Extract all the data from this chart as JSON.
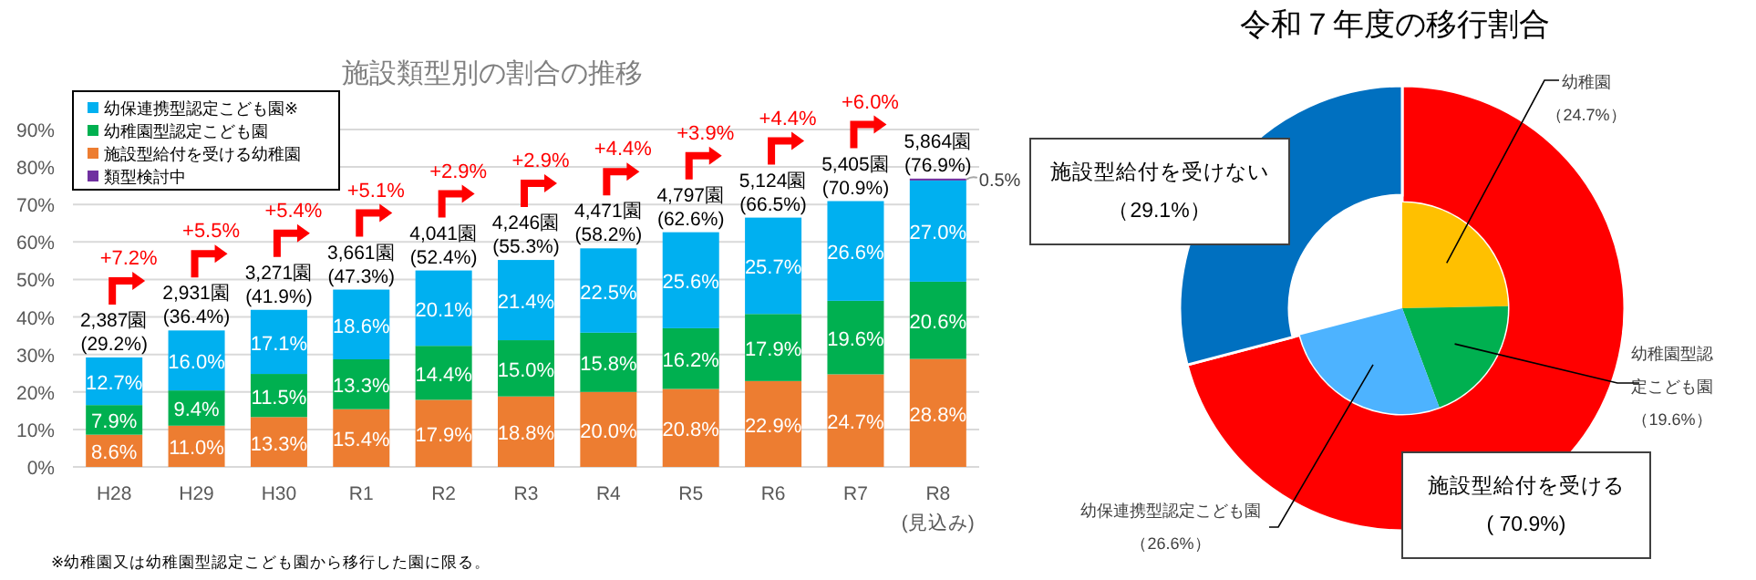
{
  "chart_data": [
    {
      "type": "bar",
      "title": "施設類型別の割合の推移",
      "stacked": true,
      "categories": [
        "H28",
        "H29",
        "H30",
        "R1",
        "R2",
        "R3",
        "R4",
        "R5",
        "R6",
        "R7",
        "R8\n(見込み)"
      ],
      "series": [
        {
          "name": "施設型給付を受ける幼稚園",
          "color": "#ed7d31",
          "values": [
            8.6,
            11.0,
            13.3,
            15.4,
            17.9,
            18.8,
            20.0,
            20.8,
            22.9,
            24.7,
            28.8
          ],
          "value_labels": [
            "8.6%",
            "11.0%",
            "13.3%",
            "15.4%",
            "17.9%",
            "18.8%",
            "20.0%",
            "20.8%",
            "22.9%",
            "24.7%",
            "28.8%"
          ]
        },
        {
          "name": "幼稚園型認定こども園",
          "color": "#00b050",
          "values": [
            7.9,
            9.4,
            11.5,
            13.3,
            14.4,
            15.0,
            15.8,
            16.2,
            17.9,
            19.6,
            20.6
          ],
          "value_labels": [
            "7.9%",
            "9.4%",
            "11.5%",
            "13.3%",
            "14.4%",
            "15.0%",
            "15.8%",
            "16.2%",
            "17.9%",
            "19.6%",
            "20.6%"
          ]
        },
        {
          "name": "幼保連携型認定こども園※",
          "color": "#00b0f0",
          "values": [
            12.7,
            16.0,
            17.1,
            18.6,
            20.1,
            21.4,
            22.5,
            25.6,
            25.7,
            26.6,
            27.0
          ],
          "value_labels": [
            "12.7%",
            "16.0%",
            "17.1%",
            "18.6%",
            "20.1%",
            "21.4%",
            "22.5%",
            "25.6%",
            "25.7%",
            "26.6%",
            "27.0%"
          ]
        },
        {
          "name": "類型検討中",
          "color": "#7030a0",
          "values": [
            null,
            null,
            null,
            null,
            null,
            null,
            null,
            null,
            null,
            null,
            0.5
          ],
          "value_labels": [
            null,
            null,
            null,
            null,
            null,
            null,
            null,
            null,
            null,
            null,
            "0.5%"
          ]
        }
      ],
      "totals": [
        "2,387園\n(29.2%)",
        "2,931園\n(36.4%)",
        "3,271園\n(41.9%)",
        "3,661園\n(47.3%)",
        "4,041園\n(52.4%)",
        "4,246園\n(55.3%)",
        "4,471園\n(58.2%)",
        "4,797園\n(62.6%)",
        "5,124園\n(66.5%)",
        "5,405園\n(70.9%)",
        "5,864園\n(76.9%)"
      ],
      "ylim": [
        0,
        90
      ],
      "yticks": [
        {
          "value": 0,
          "label": "0%"
        },
        {
          "value": 10,
          "label": "10%"
        },
        {
          "value": 20,
          "label": "20%"
        },
        {
          "value": 30,
          "label": "30%"
        },
        {
          "value": 40,
          "label": "40%"
        },
        {
          "value": 50,
          "label": "50%"
        },
        {
          "value": 60,
          "label": "60%"
        },
        {
          "value": 70,
          "label": "70%"
        },
        {
          "value": 80,
          "label": "80%"
        },
        {
          "value": 90,
          "label": "90%"
        }
      ],
      "grid": "y",
      "legend": "top left",
      "annotations": [
        {
          "text": "+7.2%",
          "x": "H28"
        },
        {
          "text": "+5.5%",
          "x": "H29"
        },
        {
          "text": "+5.4%",
          "x": "H30"
        },
        {
          "text": "+5.1%",
          "x": "R1"
        },
        {
          "text": "+2.9%",
          "x": "R2"
        },
        {
          "text": "+2.9%",
          "x": "R3"
        },
        {
          "text": "+4.4%",
          "x": "R4"
        },
        {
          "text": "+3.9%",
          "x": "R5"
        },
        {
          "text": "+4.4%",
          "x": "R6"
        },
        {
          "text": "+6.0%",
          "x": "R7"
        },
        "※幼稚園又は幼稚園型認定こども園から移行した園に限る。"
      ]
    },
    {
      "type": "donut",
      "title": "令和７年度の移行割合",
      "categories": [
        "施設型給付を受ける",
        "施設型給付を受けない"
      ],
      "values": [
        70.9,
        29.1
      ],
      "colors": [
        "#ff0000",
        "#0070c0"
      ],
      "value_labels": [
        "( 70.9%)",
        "（29.1%）"
      ]
    },
    {
      "type": "pie",
      "categories": [
        "幼稚園",
        "幼稚園型認定こども園",
        "幼保連携型認定こども園"
      ],
      "values": [
        24.7,
        19.6,
        26.6
      ],
      "colors": [
        "#ffc000",
        "#00b050",
        "#4db3ff"
      ],
      "value_labels": [
        "（24.7%）",
        "（19.6%）",
        "（26.6%）"
      ]
    }
  ]
}
